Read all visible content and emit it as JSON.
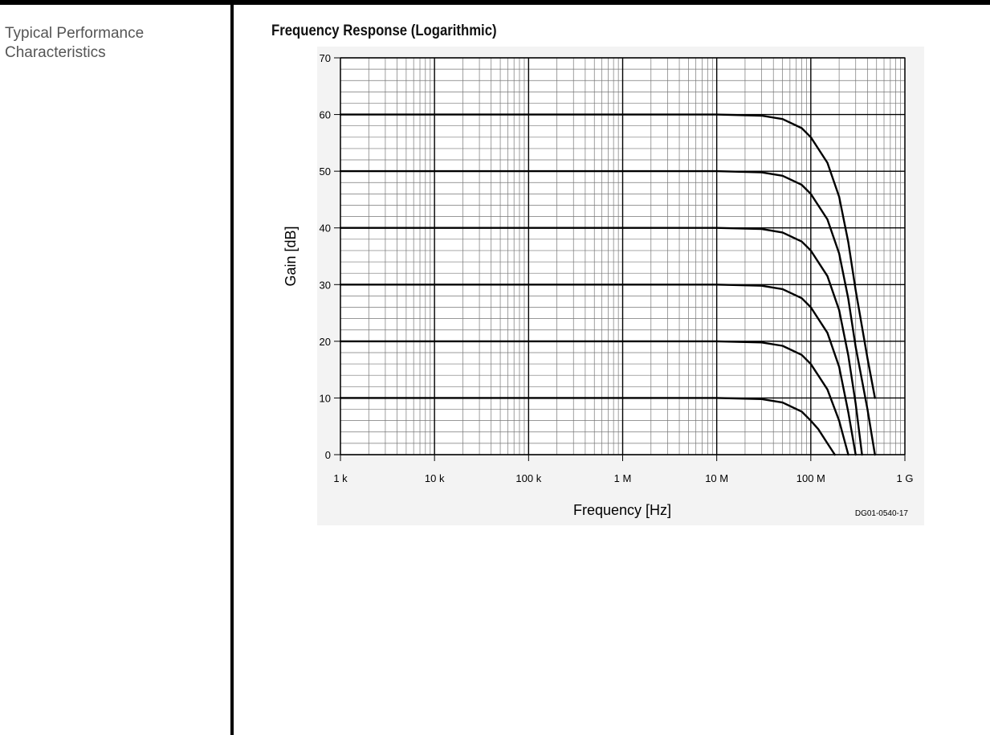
{
  "section": {
    "heading": "Typical Performance Characteristics"
  },
  "chart_data": {
    "type": "line",
    "title": "Frequency Response (Logarithmic)",
    "xlabel": "Frequency [Hz]",
    "ylabel": "Gain [dB]",
    "figure_id": "DG01-0540-17",
    "x_scale": "log",
    "xlim": [
      1000,
      1000000000
    ],
    "ylim": [
      0,
      70
    ],
    "x_ticks": [
      {
        "value": 1000,
        "label": "1 k"
      },
      {
        "value": 10000,
        "label": "10 k"
      },
      {
        "value": 100000,
        "label": "100 k"
      },
      {
        "value": 1000000,
        "label": "1 M"
      },
      {
        "value": 10000000,
        "label": "10 M"
      },
      {
        "value": 100000000,
        "label": "100 M"
      },
      {
        "value": 1000000000,
        "label": "1 G"
      }
    ],
    "y_ticks": [
      {
        "value": 0,
        "label": "0"
      },
      {
        "value": 10,
        "label": "10"
      },
      {
        "value": 20,
        "label": "20"
      },
      {
        "value": 30,
        "label": "30"
      },
      {
        "value": 40,
        "label": "40"
      },
      {
        "value": 50,
        "label": "50"
      },
      {
        "value": 60,
        "label": "60"
      },
      {
        "value": 70,
        "label": "70"
      }
    ],
    "grid": true,
    "series": [
      {
        "x": [
          1000,
          100000,
          1000000,
          10000000,
          30000000,
          50000000,
          80000000,
          100000000,
          120000000,
          150000000,
          180000000
        ],
        "y": [
          10,
          10,
          10,
          10,
          9.8,
          9.2,
          7.6,
          6.0,
          4.5,
          2.0,
          0
        ]
      },
      {
        "x": [
          1000,
          100000,
          1000000,
          10000000,
          30000000,
          50000000,
          80000000,
          100000000,
          150000000,
          200000000,
          250000000
        ],
        "y": [
          20,
          20,
          20,
          20,
          19.8,
          19.2,
          17.6,
          16.0,
          11.5,
          6.0,
          0
        ]
      },
      {
        "x": [
          1000,
          100000,
          1000000,
          10000000,
          30000000,
          50000000,
          80000000,
          100000000,
          150000000,
          200000000,
          250000000,
          300000000
        ],
        "y": [
          30,
          30,
          30,
          30,
          29.8,
          29.2,
          27.6,
          26.0,
          21.5,
          15.5,
          7.5,
          0
        ]
      },
      {
        "x": [
          1000,
          100000,
          1000000,
          10000000,
          30000000,
          50000000,
          80000000,
          100000000,
          150000000,
          200000000,
          250000000,
          300000000,
          350000000
        ],
        "y": [
          40,
          40,
          40,
          40,
          39.8,
          39.2,
          37.6,
          36.0,
          31.5,
          25.5,
          17.5,
          9.0,
          0
        ]
      },
      {
        "x": [
          1000,
          100000,
          1000000,
          10000000,
          30000000,
          50000000,
          80000000,
          100000000,
          150000000,
          200000000,
          250000000,
          300000000,
          400000000,
          480000000
        ],
        "y": [
          50,
          50,
          50,
          50,
          49.8,
          49.2,
          47.6,
          46.0,
          41.5,
          35.5,
          27.5,
          19.0,
          8.0,
          0
        ]
      },
      {
        "x": [
          1000,
          100000,
          1000000,
          10000000,
          30000000,
          50000000,
          80000000,
          100000000,
          150000000,
          200000000,
          250000000,
          300000000,
          400000000,
          480000000
        ],
        "y": [
          60,
          60,
          60,
          60,
          59.8,
          59.2,
          57.6,
          56.0,
          51.5,
          45.5,
          37.5,
          29.0,
          17.0,
          10.0
        ]
      }
    ]
  }
}
